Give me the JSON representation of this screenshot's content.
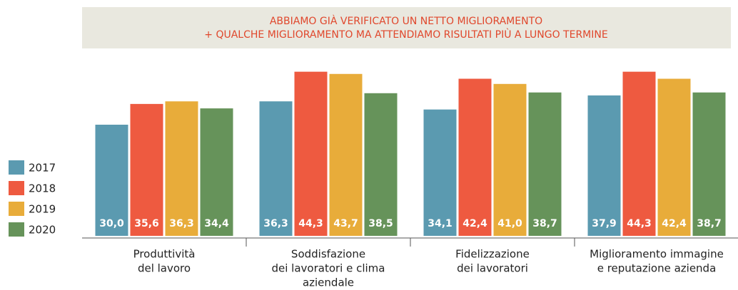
{
  "chart_data": {
    "type": "bar",
    "title": [
      "ABBIAMO GIÀ VERIFICATO UN NETTO MIGLIORAMENTO",
      "+ QUALCHE MIGLIORAMENTO MA ATTENDIAMO RISULTATI PIÙ A LUNGO TERMINE"
    ],
    "categories": [
      [
        "Produttività",
        "del lavoro"
      ],
      [
        "Soddisfazione",
        "dei lavoratori e clima",
        "aziendale"
      ],
      [
        "Fidelizzazione",
        "dei lavoratori"
      ],
      [
        "Miglioramento immagine",
        "e reputazione azienda"
      ]
    ],
    "series": [
      {
        "name": "2017",
        "color": "#5b9ab0",
        "values": [
          30.0,
          36.3,
          34.1,
          37.9
        ],
        "value_labels": [
          "30,0",
          "36,3",
          "34,1",
          "37,9"
        ]
      },
      {
        "name": "2018",
        "color": "#ee5a40",
        "values": [
          35.6,
          44.3,
          42.4,
          44.3
        ],
        "value_labels": [
          "35,6",
          "44,3",
          "42,4",
          "44,3"
        ]
      },
      {
        "name": "2019",
        "color": "#e8ac3a",
        "values": [
          36.3,
          43.7,
          41.0,
          42.4
        ],
        "value_labels": [
          "36,3",
          "43,7",
          "41,0",
          "42,4"
        ]
      },
      {
        "name": "2020",
        "color": "#66935a",
        "values": [
          34.4,
          38.5,
          38.7,
          38.7
        ],
        "value_labels": [
          "34,4",
          "38,5",
          "38,7",
          "38,7"
        ]
      }
    ],
    "ylim": [
      0,
      45
    ],
    "legend": "left"
  }
}
